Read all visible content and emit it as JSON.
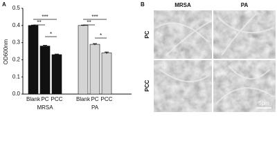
{
  "panel_labels": [
    "A",
    "B"
  ],
  "chart_data": {
    "type": "bar",
    "y_label": "OD600nm",
    "categories": [
      "Blank",
      "PC",
      "PCC"
    ],
    "series": [
      {
        "name": "MRSA",
        "color": "#111111",
        "values": [
          0.4,
          0.28,
          0.23
        ],
        "errors": [
          0.002,
          0.004,
          0.003
        ]
      },
      {
        "name": "PA",
        "color": "#d4d4d4",
        "values": [
          0.4,
          0.29,
          0.24
        ],
        "errors": [
          0.002,
          0.004,
          0.005
        ]
      }
    ],
    "significance": [
      "***",
      "**",
      "*"
    ],
    "ylim": [
      0,
      0.5
    ],
    "yticks": [
      {
        "value": 0,
        "label": "0.0"
      },
      0.1,
      0.2,
      0.3,
      0.4,
      0.5
    ]
  },
  "micrographs": {
    "columns": [
      "MRSA",
      "PA"
    ],
    "rows": [
      "PC",
      "PCC"
    ],
    "scale_bar": "5μm"
  }
}
